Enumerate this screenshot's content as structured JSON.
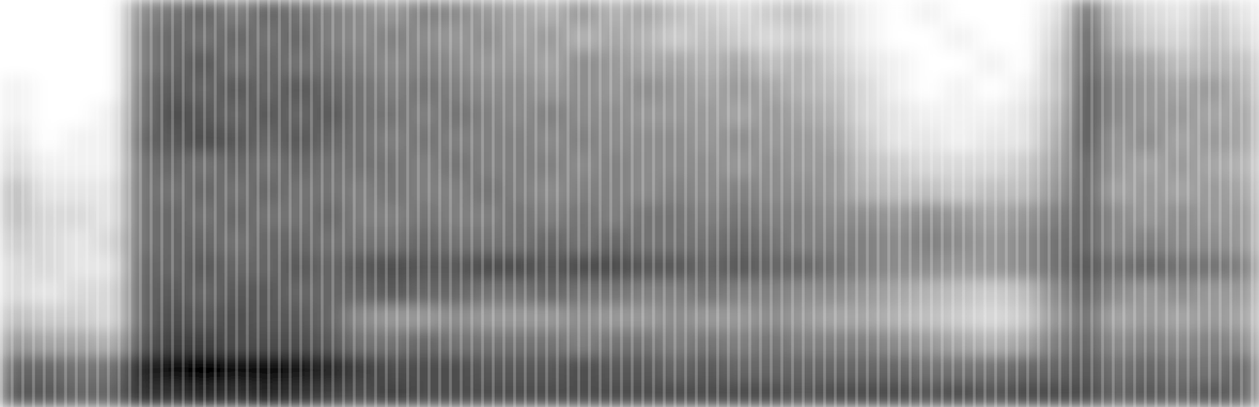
{
  "chart_data": {
    "type": "heatmap",
    "tick_labels": false,
    "zlim": [
      0,
      100
    ],
    "cells": [
      [
        0,
        0,
        0,
        0,
        45,
        55,
        60,
        50,
        60,
        55,
        50,
        45,
        40,
        50,
        45,
        40,
        35,
        30,
        40,
        30,
        35,
        25,
        20,
        15,
        20,
        25,
        15,
        5,
        0,
        5,
        0,
        0,
        0,
        10,
        55,
        25,
        15,
        10,
        20,
        10
      ],
      [
        0,
        0,
        0,
        0,
        50,
        60,
        55,
        60,
        55,
        60,
        50,
        45,
        50,
        45,
        40,
        45,
        35,
        40,
        30,
        35,
        30,
        20,
        25,
        20,
        15,
        20,
        15,
        5,
        0,
        0,
        5,
        0,
        0,
        15,
        60,
        30,
        20,
        15,
        25,
        15
      ],
      [
        0,
        0,
        0,
        0,
        50,
        60,
        65,
        55,
        60,
        55,
        55,
        50,
        45,
        50,
        45,
        40,
        40,
        35,
        45,
        40,
        35,
        35,
        30,
        35,
        25,
        30,
        20,
        10,
        5,
        0,
        0,
        5,
        0,
        20,
        60,
        40,
        35,
        25,
        30,
        25
      ],
      [
        5,
        0,
        0,
        0,
        55,
        65,
        60,
        65,
        60,
        65,
        60,
        55,
        50,
        55,
        50,
        45,
        45,
        40,
        45,
        40,
        45,
        40,
        35,
        40,
        35,
        30,
        25,
        15,
        5,
        0,
        5,
        0,
        5,
        20,
        65,
        45,
        40,
        35,
        40,
        30
      ],
      [
        5,
        0,
        0,
        5,
        55,
        70,
        65,
        60,
        65,
        60,
        65,
        55,
        55,
        50,
        55,
        50,
        45,
        50,
        45,
        45,
        40,
        40,
        40,
        35,
        40,
        35,
        30,
        15,
        10,
        5,
        5,
        5,
        10,
        25,
        65,
        45,
        40,
        40,
        35,
        35
      ],
      [
        10,
        0,
        5,
        5,
        60,
        65,
        70,
        65,
        60,
        65,
        60,
        55,
        50,
        55,
        50,
        50,
        50,
        45,
        50,
        45,
        45,
        45,
        40,
        45,
        40,
        40,
        35,
        20,
        10,
        10,
        5,
        10,
        10,
        30,
        65,
        40,
        45,
        35,
        40,
        35
      ],
      [
        15,
        5,
        5,
        5,
        55,
        60,
        55,
        60,
        55,
        60,
        55,
        55,
        55,
        50,
        55,
        50,
        50,
        50,
        45,
        50,
        45,
        45,
        45,
        40,
        45,
        40,
        40,
        25,
        20,
        15,
        15,
        15,
        20,
        35,
        60,
        40,
        35,
        40,
        35,
        30
      ],
      [
        25,
        10,
        10,
        10,
        55,
        55,
        60,
        55,
        60,
        55,
        55,
        50,
        55,
        50,
        50,
        55,
        50,
        45,
        50,
        50,
        45,
        50,
        45,
        50,
        45,
        45,
        40,
        30,
        25,
        25,
        20,
        25,
        25,
        40,
        60,
        35,
        40,
        35,
        40,
        35
      ],
      [
        25,
        15,
        15,
        10,
        55,
        60,
        55,
        60,
        55,
        55,
        60,
        50,
        50,
        55,
        50,
        50,
        55,
        50,
        55,
        50,
        55,
        55,
        50,
        55,
        50,
        50,
        45,
        45,
        40,
        45,
        40,
        35,
        40,
        50,
        60,
        45,
        40,
        45,
        40,
        40
      ],
      [
        20,
        15,
        10,
        15,
        55,
        60,
        60,
        55,
        60,
        60,
        55,
        55,
        55,
        60,
        55,
        55,
        55,
        60,
        55,
        60,
        55,
        55,
        55,
        60,
        55,
        50,
        50,
        50,
        45,
        50,
        45,
        40,
        45,
        55,
        60,
        45,
        50,
        45,
        45,
        40
      ],
      [
        15,
        15,
        10,
        10,
        60,
        60,
        65,
        60,
        60,
        65,
        60,
        65,
        70,
        65,
        65,
        70,
        70,
        65,
        70,
        70,
        65,
        65,
        60,
        65,
        60,
        60,
        55,
        50,
        45,
        45,
        40,
        40,
        45,
        55,
        65,
        55,
        60,
        55,
        55,
        50
      ],
      [
        15,
        10,
        15,
        15,
        60,
        65,
        60,
        65,
        65,
        60,
        60,
        60,
        65,
        60,
        60,
        55,
        55,
        60,
        55,
        55,
        50,
        50,
        55,
        50,
        50,
        45,
        45,
        40,
        35,
        30,
        25,
        20,
        25,
        45,
        60,
        45,
        40,
        45,
        40,
        40
      ],
      [
        25,
        20,
        20,
        15,
        60,
        70,
        65,
        70,
        65,
        65,
        60,
        45,
        40,
        40,
        45,
        40,
        40,
        40,
        45,
        40,
        40,
        45,
        40,
        40,
        45,
        40,
        35,
        35,
        30,
        25,
        20,
        15,
        20,
        40,
        55,
        35,
        40,
        35,
        40,
        35
      ],
      [
        40,
        35,
        35,
        30,
        65,
        75,
        75,
        70,
        70,
        70,
        65,
        55,
        55,
        60,
        55,
        55,
        55,
        55,
        50,
        55,
        55,
        50,
        55,
        50,
        55,
        50,
        50,
        50,
        45,
        40,
        35,
        30,
        35,
        50,
        60,
        45,
        50,
        45,
        50,
        45
      ],
      [
        60,
        60,
        55,
        55,
        85,
        95,
        100,
        95,
        95,
        90,
        85,
        75,
        70,
        70,
        70,
        65,
        65,
        65,
        70,
        65,
        65,
        60,
        65,
        60,
        60,
        60,
        60,
        60,
        60,
        55,
        55,
        55,
        60,
        60,
        65,
        55,
        60,
        55,
        55,
        60
      ],
      [
        65,
        65,
        60,
        60,
        80,
        80,
        85,
        80,
        85,
        80,
        75,
        70,
        75,
        70,
        70,
        70,
        70,
        70,
        70,
        70,
        70,
        70,
        70,
        70,
        70,
        65,
        70,
        70,
        70,
        65,
        70,
        65,
        70,
        70,
        70,
        60,
        65,
        60,
        65,
        60
      ]
    ]
  }
}
